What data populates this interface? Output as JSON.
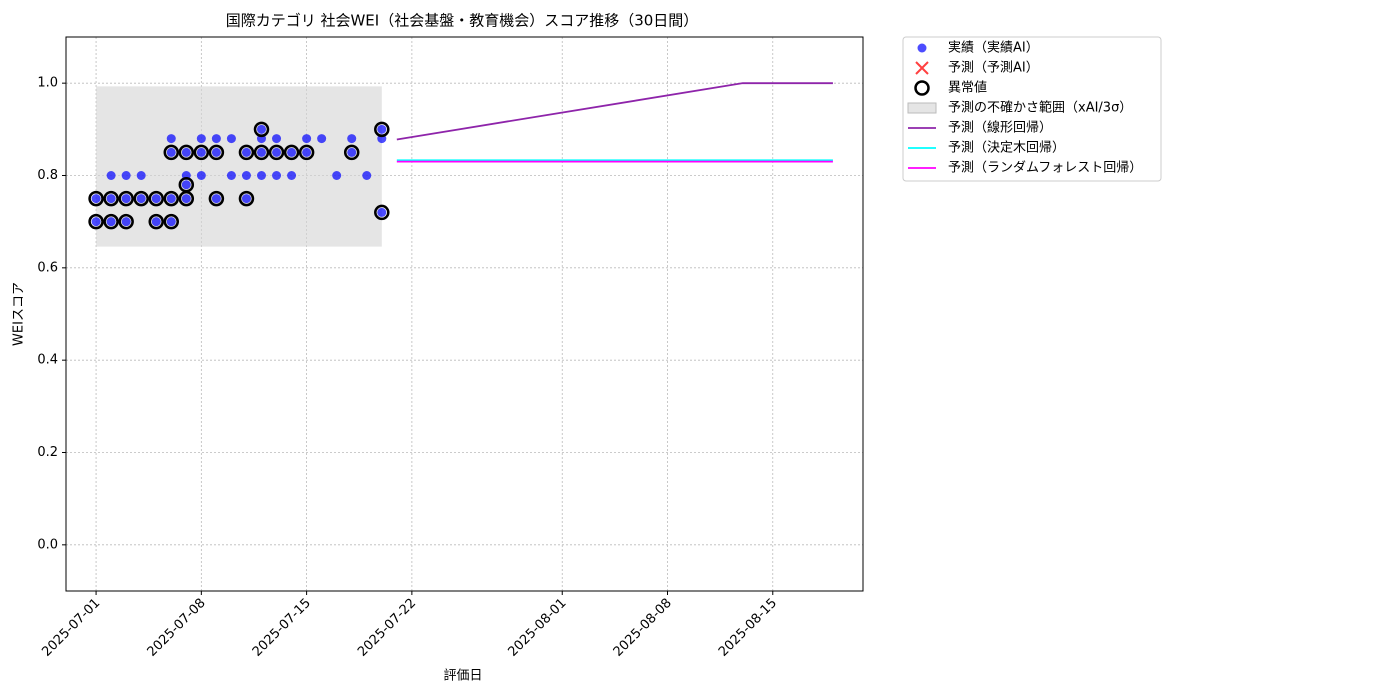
{
  "chart_data": {
    "type": "scatter",
    "title": "国際カテゴリ 社会WEI（社会基盤・教育機会）スコア推移（30日間）",
    "xlabel": "評価日",
    "ylabel": "WEIスコア",
    "xlim": [
      "2025-06-29",
      "2025-08-21"
    ],
    "ylim": [
      -0.1,
      1.1
    ],
    "xticks": [
      "2025-07-01",
      "2025-07-08",
      "2025-07-15",
      "2025-07-22",
      "2025-08-01",
      "2025-08-08",
      "2025-08-15"
    ],
    "yticks": [
      {
        "value": 0,
        "label": "0.0"
      },
      {
        "value": 0.2,
        "label": "0.2"
      },
      {
        "value": 0.4,
        "label": "0.4"
      },
      {
        "value": 0.6,
        "label": "0.6"
      },
      {
        "value": 0.8,
        "label": "0.8"
      },
      {
        "value": 1,
        "label": "1.0"
      }
    ],
    "grid": true,
    "legend": "outside upper right",
    "series": [
      {
        "name": "実績（実績AI）",
        "type": "scatter",
        "marker": "o",
        "color": "#0000ff",
        "x": [
          "2025-07-01",
          "2025-07-01",
          "2025-07-02",
          "2025-07-02",
          "2025-07-02",
          "2025-07-03",
          "2025-07-03",
          "2025-07-03",
          "2025-07-04",
          "2025-07-04",
          "2025-07-05",
          "2025-07-05",
          "2025-07-06",
          "2025-07-06",
          "2025-07-06",
          "2025-07-06",
          "2025-07-07",
          "2025-07-07",
          "2025-07-07",
          "2025-07-07",
          "2025-07-08",
          "2025-07-08",
          "2025-07-08",
          "2025-07-09",
          "2025-07-09",
          "2025-07-09",
          "2025-07-10",
          "2025-07-10",
          "2025-07-11",
          "2025-07-11",
          "2025-07-11",
          "2025-07-12",
          "2025-07-12",
          "2025-07-12",
          "2025-07-12",
          "2025-07-13",
          "2025-07-13",
          "2025-07-13",
          "2025-07-14",
          "2025-07-14",
          "2025-07-15",
          "2025-07-15",
          "2025-07-16",
          "2025-07-17",
          "2025-07-18",
          "2025-07-18",
          "2025-07-19",
          "2025-07-20",
          "2025-07-20",
          "2025-07-20"
        ],
        "values": [
          0.7,
          0.75,
          0.7,
          0.75,
          0.8,
          0.8,
          0.7,
          0.75,
          0.75,
          0.8,
          0.75,
          0.7,
          0.75,
          0.7,
          0.85,
          0.88,
          0.85,
          0.78,
          0.8,
          0.75,
          0.85,
          0.8,
          0.88,
          0.88,
          0.85,
          0.75,
          0.88,
          0.8,
          0.8,
          0.75,
          0.85,
          0.9,
          0.88,
          0.85,
          0.8,
          0.88,
          0.85,
          0.8,
          0.85,
          0.8,
          0.85,
          0.88,
          0.88,
          0.8,
          0.85,
          0.88,
          0.8,
          0.9,
          0.88,
          0.72
        ]
      },
      {
        "name": "予測（予測AI）",
        "type": "scatter",
        "marker": "x",
        "color": "#ff0000",
        "x": [],
        "values": []
      },
      {
        "name": "異常値",
        "type": "scatter",
        "marker": "ring",
        "color": "#000000",
        "x": [
          "2025-07-01",
          "2025-07-01",
          "2025-07-02",
          "2025-07-02",
          "2025-07-03",
          "2025-07-03",
          "2025-07-04",
          "2025-07-05",
          "2025-07-05",
          "2025-07-06",
          "2025-07-06",
          "2025-07-06",
          "2025-07-07",
          "2025-07-07",
          "2025-07-07",
          "2025-07-08",
          "2025-07-09",
          "2025-07-09",
          "2025-07-11",
          "2025-07-11",
          "2025-07-12",
          "2025-07-12",
          "2025-07-13",
          "2025-07-14",
          "2025-07-15",
          "2025-07-18",
          "2025-07-20",
          "2025-07-20"
        ],
        "values": [
          0.7,
          0.75,
          0.7,
          0.75,
          0.7,
          0.75,
          0.75,
          0.75,
          0.7,
          0.75,
          0.7,
          0.85,
          0.85,
          0.78,
          0.75,
          0.85,
          0.85,
          0.75,
          0.75,
          0.85,
          0.9,
          0.85,
          0.85,
          0.85,
          0.85,
          0.85,
          0.9,
          0.72
        ]
      },
      {
        "name": "予測の不確かさ範囲（xAI/3σ）",
        "type": "band",
        "color": "#d3d3d3",
        "x": [
          "2025-07-01",
          "2025-07-20"
        ],
        "lower": [
          0.646,
          0.646
        ],
        "upper": [
          0.993,
          0.993
        ]
      },
      {
        "name": "予測（線形回帰）",
        "type": "line",
        "color": "#8e24aa",
        "x": [
          "2025-07-21",
          "2025-08-13",
          "2025-08-19"
        ],
        "values": [
          0.878,
          1.0,
          1.0
        ]
      },
      {
        "name": "予測（決定木回帰）",
        "type": "line",
        "color": "#00ffff",
        "x": [
          "2025-07-21",
          "2025-08-19"
        ],
        "values": [
          0.833,
          0.833
        ]
      },
      {
        "name": "予測（ランダムフォレスト回帰）",
        "type": "line",
        "color": "#ff00ff",
        "x": [
          "2025-07-21",
          "2025-08-19"
        ],
        "values": [
          0.83,
          0.83
        ]
      }
    ]
  }
}
